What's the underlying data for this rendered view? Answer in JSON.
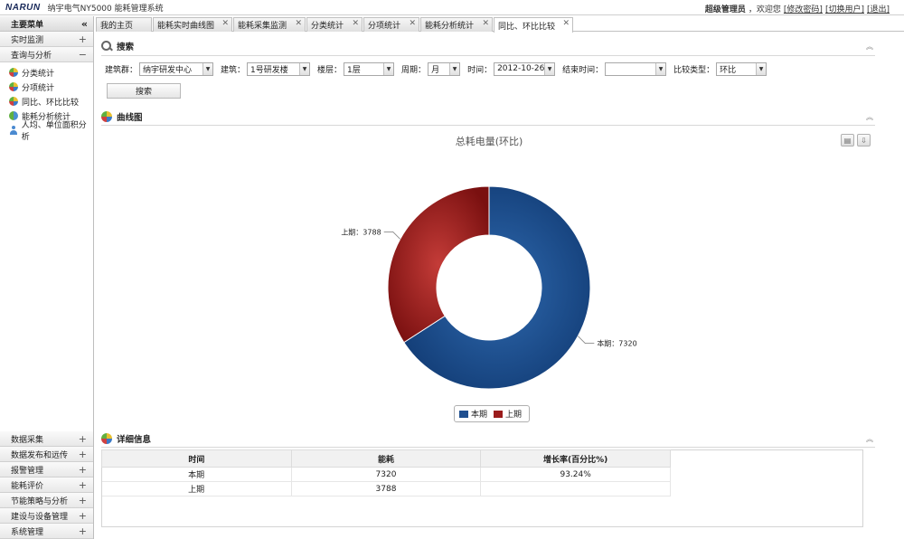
{
  "header": {
    "logo": "NARUN",
    "system_name": "纳宇电气NY5000 能耗管理系统",
    "user_name": "超级管理员",
    "welcome": "，欢迎您",
    "links": [
      "[修改密码]",
      "[切换用户]",
      "[退出]"
    ]
  },
  "sidebar": {
    "title": "主要菜单",
    "collapse_glyph": "«",
    "top_sections": [
      {
        "label": "实时监测",
        "state": "+"
      },
      {
        "label": "查询与分析",
        "state": "−"
      }
    ],
    "items": [
      {
        "label": "分类统计",
        "icon": "pie-ball-icon"
      },
      {
        "label": "分项统计",
        "icon": "pie-ball-icon"
      },
      {
        "label": "同比、环比比较",
        "icon": "pie-ball-icon"
      },
      {
        "label": "能耗分析统计",
        "icon": "pie-ball-icon"
      },
      {
        "label": "人均、单位面积分析",
        "icon": "person-icon"
      }
    ],
    "bottom_sections": [
      {
        "label": "数据采集",
        "state": "+"
      },
      {
        "label": "数据发布和远传",
        "state": "+"
      },
      {
        "label": "报警管理",
        "state": "+"
      },
      {
        "label": "能耗评价",
        "state": "+"
      },
      {
        "label": "节能策略与分析",
        "state": "+"
      },
      {
        "label": "建设与设备管理",
        "state": "+"
      },
      {
        "label": "系统管理",
        "state": "+"
      }
    ]
  },
  "tabs": [
    {
      "label": "我的主页"
    },
    {
      "label": "能耗实时曲线图"
    },
    {
      "label": "能耗采集监测"
    },
    {
      "label": "分类统计"
    },
    {
      "label": "分项统计"
    },
    {
      "label": "能耗分析统计"
    },
    {
      "label": "同比、环比比较",
      "active": true
    }
  ],
  "search": {
    "title": "搜索",
    "fields": [
      {
        "label": "建筑群：",
        "value": "纳宇研发中心"
      },
      {
        "label": "建筑：",
        "value": "1号研发楼"
      },
      {
        "label": "楼层：",
        "value": "1层"
      },
      {
        "label": "周期：",
        "value": "月"
      },
      {
        "label": "时间：",
        "value": "2012-10-26"
      },
      {
        "label": "结束时间：",
        "value": ""
      },
      {
        "label": "比较类型：",
        "value": "环比"
      }
    ],
    "button_label": "搜索"
  },
  "chart_panel": {
    "title": "曲线图",
    "print_icon": "printer-icon",
    "export_icon": "download-icon"
  },
  "chart_data": {
    "type": "pie",
    "donut": true,
    "title": "总耗电量(环比)",
    "labels": [
      "本期",
      "上期"
    ],
    "values": [
      7320,
      3788
    ],
    "colors": [
      "#1f4f8f",
      "#9b1c1c"
    ],
    "data_labels": [
      "本期：7320",
      "上期：3788"
    ],
    "legend": [
      "本期",
      "上期"
    ],
    "legend_position": "bottom"
  },
  "detail": {
    "title": "详细信息",
    "columns": [
      "时间",
      "能耗",
      "增长率(百分比%)"
    ],
    "rows": [
      [
        "本期",
        "7320",
        "93.24%"
      ],
      [
        "上期",
        "3788",
        ""
      ]
    ]
  }
}
